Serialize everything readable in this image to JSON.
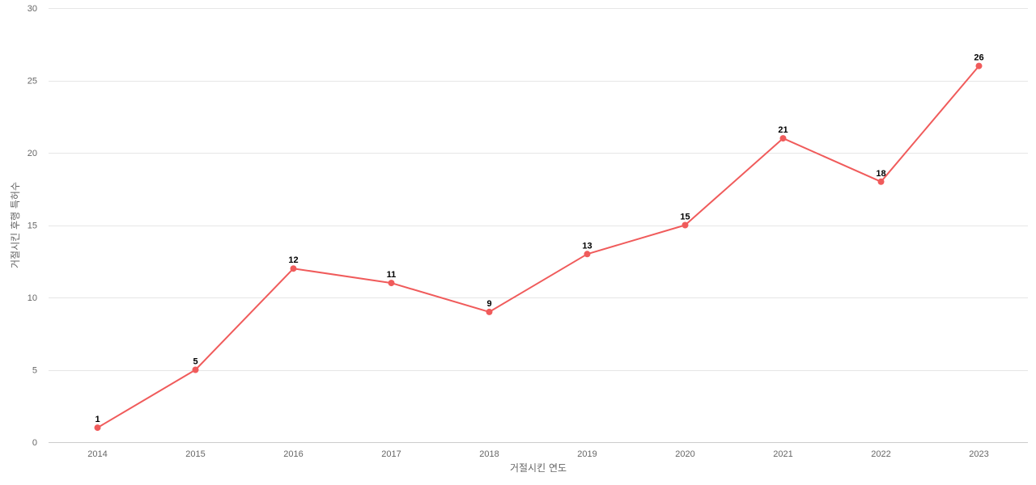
{
  "chart_data": {
    "type": "line",
    "title": "",
    "xlabel": "거절시킨 연도",
    "ylabel": "거절시킨 후행 특허수",
    "categories": [
      "2014",
      "2015",
      "2016",
      "2017",
      "2018",
      "2019",
      "2020",
      "2021",
      "2022",
      "2023"
    ],
    "series": [
      {
        "values": [
          1,
          5,
          12,
          11,
          9,
          13,
          15,
          21,
          18,
          26
        ]
      }
    ],
    "ylim": [
      0,
      30
    ],
    "yticks": [
      0,
      5,
      10,
      15,
      20,
      25,
      30
    ],
    "grid": true,
    "legend": "none",
    "line_color": "#f05b5b",
    "show_data_labels": true
  }
}
